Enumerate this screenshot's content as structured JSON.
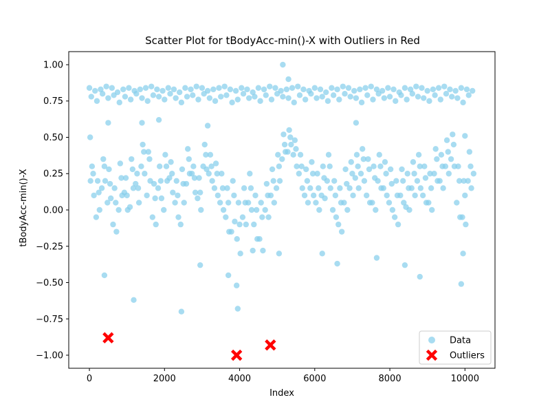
{
  "chart_data": {
    "type": "scatter",
    "title": "Scatter Plot for tBodyAcc-min()-X with Outliers in Red",
    "xlabel": "Index",
    "ylabel": "tBodyAcc-min()-X",
    "xlim": [
      -550,
      10800
    ],
    "ylim": [
      -1.09,
      1.09
    ],
    "x_ticks": [
      0,
      2000,
      4000,
      6000,
      8000,
      10000
    ],
    "x_tick_labels": [
      "0",
      "2000",
      "4000",
      "6000",
      "8000",
      "10000"
    ],
    "y_ticks": [
      -1.0,
      -0.75,
      -0.5,
      -0.25,
      0.0,
      0.25,
      0.5,
      0.75,
      1.0
    ],
    "y_tick_labels": [
      "−1.00",
      "−0.75",
      "−0.50",
      "−0.25",
      "0.00",
      "0.25",
      "0.50",
      "0.75",
      "1.00"
    ],
    "grid": false,
    "legend_position": "bottom-right",
    "legend": [
      "Data",
      "Outliers"
    ],
    "colors": {
      "data": "#87ceeb",
      "outliers": "#ff0000"
    },
    "series": [
      {
        "name": "Data",
        "x": [
          0,
          150,
          300,
          450,
          600,
          750,
          900,
          1050,
          1200,
          1350,
          1500,
          1650,
          1800,
          1950,
          2100,
          2250,
          2400,
          2550,
          2700,
          2850,
          3000,
          3150,
          3300,
          3450,
          3600,
          3750,
          3900,
          4050,
          4200,
          4350,
          4500,
          4650,
          4800,
          4950,
          5100,
          5250,
          5400,
          5550,
          5700,
          5850,
          6000,
          6150,
          6300,
          6450,
          6600,
          6750,
          6900,
          7050,
          7200,
          7350,
          7500,
          7650,
          7800,
          7950,
          8100,
          8250,
          8400,
          8550,
          8700,
          8850,
          9000,
          9150,
          9300,
          9450,
          9600,
          9750,
          9900,
          10050,
          10200,
          50,
          200,
          350,
          500,
          650,
          800,
          950,
          1100,
          1250,
          1400,
          1550,
          1700,
          1850,
          2000,
          2150,
          2300,
          2450,
          2600,
          2750,
          2900,
          3050,
          3200,
          3350,
          3500,
          3650,
          3800,
          3950,
          4100,
          4250,
          4400,
          4550,
          4700,
          4850,
          5000,
          5150,
          5300,
          5450,
          5600,
          5750,
          5900,
          6050,
          6200,
          6350,
          6500,
          6650,
          6800,
          6950,
          7100,
          7250,
          7400,
          7550,
          7700,
          7850,
          8000,
          8150,
          8300,
          8450,
          8600,
          8750,
          8900,
          9050,
          9200,
          9350,
          9500,
          9650,
          9800,
          9950,
          10100,
          100,
          250,
          400,
          550,
          700,
          850,
          1000,
          1150,
          1300,
          1450,
          1600,
          1750,
          1900,
          2050,
          2200,
          2350,
          2500,
          2650,
          2800,
          2950,
          3100,
          3250,
          3400,
          3550,
          3700,
          3850,
          4000,
          4150,
          4300,
          4450,
          4600,
          4750,
          4900,
          5050,
          5200,
          5350,
          5500,
          5650,
          5800,
          5950,
          6100,
          6250,
          6400,
          6550,
          6700,
          6850,
          7000,
          7150,
          7300,
          7450,
          7600,
          7750,
          7900,
          8050,
          8200,
          8350,
          8500,
          8650,
          8800,
          8950,
          9100,
          9250,
          9400,
          9550,
          9700,
          9850,
          10000,
          10150,
          30,
          180,
          330,
          480,
          630,
          780,
          930,
          1080,
          1230,
          1380,
          1530,
          1680,
          1830,
          1980,
          2130,
          2280,
          2430,
          2580,
          2730,
          2880,
          3030,
          3180,
          3330,
          3480,
          3630,
          3780,
          3930,
          4080,
          4230,
          4380,
          4530,
          4680,
          4830,
          4980,
          5130,
          5280,
          5430,
          5580,
          5730,
          5880,
          6030,
          6180,
          6330,
          6480,
          6630,
          6780,
          6930,
          7080,
          7230,
          7380,
          7530,
          7680,
          7830,
          7980,
          8130,
          8280,
          8430,
          8580,
          8730,
          8880,
          9030,
          9180,
          9330,
          9480,
          9630,
          9780,
          9930,
          10080,
          10230,
          70,
          220,
          370,
          520,
          670,
          820,
          970,
          1120,
          1270,
          1420,
          1570,
          1720,
          1870,
          2020,
          2170,
          2320,
          2470,
          2620,
          2770,
          2920,
          3070,
          3220,
          3370,
          3520,
          3670,
          3820,
          3970,
          4120,
          4270,
          4420,
          4570,
          4720,
          4870,
          5020,
          5170,
          5320,
          5470,
          5620,
          5770,
          5920,
          6070,
          6220,
          6370,
          6520,
          6670,
          6820,
          6970,
          7120,
          7270,
          7420,
          7570,
          7720,
          7870,
          8020,
          8170,
          8320,
          8470,
          8620,
          8770,
          8920,
          9070,
          9220,
          9370,
          9520,
          9670,
          9820,
          9970,
          10120,
          120,
          270,
          420,
          570,
          720,
          870,
          1020,
          1170,
          1320,
          1470,
          1620,
          1770,
          1920,
          2070,
          2220,
          2370,
          2520,
          2670,
          2820,
          2970,
          3120,
          3270,
          3420,
          3570,
          3720,
          3870,
          4020,
          4170,
          4320,
          4470,
          4620,
          4770,
          4920,
          5070,
          5220,
          5370,
          5520,
          5670,
          5820,
          5970,
          6120,
          6270,
          6420,
          6570,
          6720,
          6870,
          7020,
          7170,
          7320,
          7470,
          7620,
          7770,
          7920,
          8070,
          8220,
          8370,
          8520,
          8670,
          8820,
          8970,
          9120,
          9270,
          9420,
          9570,
          9720,
          9870,
          10020,
          10170,
          20,
          400,
          1180,
          1400,
          2450,
          3150,
          3950,
          3920,
          5150,
          5300,
          6200,
          6600,
          8800,
          9900,
          9950,
          500,
          1850,
          2950,
          7100,
          7650,
          10000,
          8400,
          4350,
          3700,
          5050
        ],
        "y": [
          0.84,
          0.82,
          0.83,
          0.85,
          0.84,
          0.81,
          0.83,
          0.84,
          0.82,
          0.83,
          0.84,
          0.85,
          0.83,
          0.82,
          0.84,
          0.83,
          0.81,
          0.84,
          0.83,
          0.85,
          0.84,
          0.82,
          0.83,
          0.84,
          0.85,
          0.83,
          0.82,
          0.84,
          0.83,
          0.81,
          0.84,
          0.83,
          0.85,
          0.84,
          0.82,
          0.83,
          0.84,
          0.85,
          0.83,
          0.82,
          0.84,
          0.83,
          0.81,
          0.84,
          0.83,
          0.85,
          0.84,
          0.82,
          0.83,
          0.84,
          0.85,
          0.83,
          0.82,
          0.84,
          0.83,
          0.81,
          0.84,
          0.83,
          0.85,
          0.84,
          0.82,
          0.83,
          0.84,
          0.85,
          0.83,
          0.82,
          0.84,
          0.83,
          0.82,
          0.78,
          0.75,
          0.8,
          0.77,
          0.79,
          0.74,
          0.78,
          0.76,
          0.8,
          0.77,
          0.75,
          0.79,
          0.78,
          0.76,
          0.8,
          0.77,
          0.74,
          0.78,
          0.79,
          0.76,
          0.8,
          0.77,
          0.75,
          0.78,
          0.79,
          0.74,
          0.76,
          0.8,
          0.77,
          0.78,
          0.75,
          0.79,
          0.76,
          0.8,
          0.78,
          0.77,
          0.74,
          0.79,
          0.76,
          0.8,
          0.77,
          0.78,
          0.75,
          0.79,
          0.76,
          0.8,
          0.78,
          0.77,
          0.74,
          0.79,
          0.76,
          0.8,
          0.77,
          0.78,
          0.75,
          0.79,
          0.76,
          0.8,
          0.78,
          0.77,
          0.75,
          0.79,
          0.76,
          0.8,
          0.78,
          0.77,
          0.74,
          0.79,
          0.25,
          0.12,
          0.3,
          0.18,
          0.05,
          0.22,
          0.1,
          0.28,
          0.15,
          0.4,
          0.35,
          0.08,
          0.2,
          0.3,
          0.25,
          0.1,
          0.18,
          0.35,
          0.22,
          0.12,
          0.38,
          0.3,
          0.25,
          0.15,
          0.05,
          0.1,
          -0.1,
          0.05,
          0.15,
          0.0,
          -0.05,
          0.1,
          0.2,
          0.3,
          0.45,
          0.5,
          0.42,
          0.3,
          0.2,
          0.25,
          0.15,
          0.22,
          0.3,
          0.1,
          0.05,
          0.18,
          0.25,
          0.3,
          0.35,
          0.28,
          0.22,
          0.3,
          0.25,
          0.18,
          0.1,
          0.2,
          0.15,
          0.25,
          0.3,
          0.22,
          0.15,
          0.35,
          0.3,
          0.4,
          0.45,
          0.2,
          0.1,
          0.3,
          0.2,
          -0.05,
          0.15,
          0.05,
          -0.1,
          0.0,
          0.12,
          0.02,
          0.18,
          0.3,
          0.1,
          -0.05,
          0.15,
          0.0,
          0.22,
          0.05,
          -0.1,
          0.18,
          0.25,
          0.08,
          0.3,
          0.25,
          0.15,
          0.05,
          -0.05,
          -0.15,
          -0.2,
          -0.05,
          0.05,
          -0.1,
          -0.2,
          0.0,
          0.1,
          0.15,
          0.35,
          0.4,
          0.38,
          0.25,
          0.1,
          0.15,
          0.05,
          0.1,
          0.2,
          0.0,
          -0.1,
          0.05,
          0.15,
          0.22,
          0.25,
          0.1,
          0.05,
          0.2,
          0.15,
          0.05,
          -0.05,
          0.1,
          0.02,
          0.15,
          0.2,
          0.1,
          0.05,
          0.25,
          0.2,
          0.3,
          0.35,
          0.05,
          -0.05,
          0.2,
          0.25,
          0.3,
          0.2,
          0.35,
          0.28,
          0.15,
          0.32,
          0.22,
          0.35,
          0.25,
          0.45,
          0.4,
          0.18,
          0.3,
          0.38,
          0.33,
          0.2,
          0.28,
          0.42,
          0.3,
          0.22,
          0.45,
          0.38,
          0.32,
          0.25,
          0.15,
          0.2,
          0.05,
          0.15,
          0.25,
          0.1,
          0.05,
          0.18,
          0.28,
          0.38,
          0.52,
          0.55,
          0.48,
          0.38,
          0.28,
          0.33,
          0.25,
          0.3,
          0.38,
          0.2,
          0.15,
          0.28,
          0.33,
          0.38,
          0.42,
          0.35,
          0.3,
          0.38,
          0.33,
          0.28,
          0.2,
          0.28,
          0.25,
          0.33,
          0.38,
          0.3,
          0.25,
          0.42,
          0.38,
          0.48,
          0.52,
          0.3,
          0.2,
          0.4,
          0.1,
          0.0,
          0.2,
          0.08,
          -0.15,
          0.1,
          0.0,
          0.15,
          0.05,
          0.25,
          0.2,
          -0.1,
          0.08,
          0.2,
          0.12,
          -0.05,
          0.05,
          0.25,
          0.12,
          0.0,
          0.28,
          0.2,
          0.1,
          0.0,
          -0.15,
          -0.08,
          -0.3,
          -0.1,
          0.0,
          -0.2,
          -0.28,
          -0.05,
          0.05,
          0.2,
          0.4,
          0.45,
          0.3,
          0.15,
          0.05,
          0.1,
          0.0,
          0.08,
          0.15,
          -0.05,
          -0.15,
          0.0,
          0.1,
          0.15,
          0.2,
          0.05,
          0.0,
          0.15,
          0.1,
          0.0,
          -0.1,
          0.05,
          0.0,
          0.1,
          0.15,
          0.05,
          0.0,
          0.2,
          0.15,
          0.25,
          0.3,
          -0.05,
          -0.1,
          0.15,
          0.5,
          -0.45,
          -0.62,
          0.6,
          -0.7,
          0.58,
          -0.68,
          -0.52,
          1.0,
          0.9,
          -0.3,
          -0.37,
          -0.46,
          -0.51,
          -0.3,
          0.6,
          0.62,
          -0.38,
          0.6,
          -0.33,
          0.51,
          -0.38,
          -0.28,
          -0.45,
          -0.3
        ],
        "color": "#87ceeb",
        "marker": "circle"
      },
      {
        "name": "Outliers",
        "x": [
          500,
          3920,
          4820
        ],
        "y": [
          -0.88,
          -1.0,
          -0.93
        ],
        "color": "#ff0000",
        "marker": "x"
      }
    ]
  }
}
